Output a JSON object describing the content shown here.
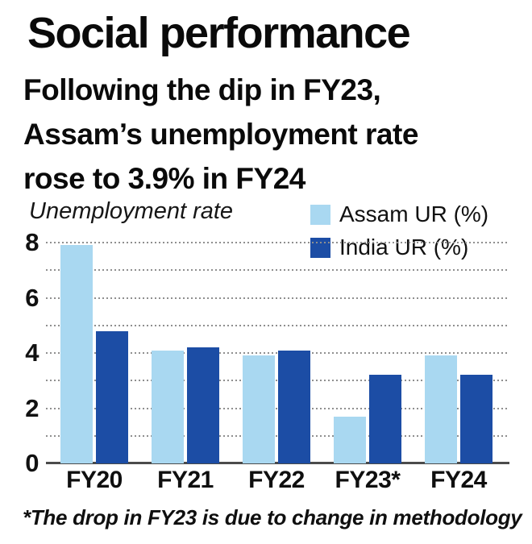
{
  "header": {
    "title": "Social performance",
    "subtitle_lines": [
      "Following the dip in FY23,",
      "Assam’s unemployment rate",
      "rose to 3.9% in FY24"
    ]
  },
  "chart_data": {
    "type": "bar",
    "title": "Social performance",
    "subtitle": "Following the dip in FY23, Assam’s unemployment rate rose to 3.9% in FY24",
    "axis_label": "Unemployment rate",
    "categories": [
      "FY20",
      "FY21",
      "FY22",
      "FY23*",
      "FY24"
    ],
    "series": [
      {
        "name": "Assam UR (%)",
        "color": "#a9d8f1",
        "values": [
          7.9,
          4.1,
          3.9,
          1.7,
          3.9
        ]
      },
      {
        "name": "India UR (%)",
        "color": "#1c4da5",
        "values": [
          4.8,
          4.2,
          4.1,
          3.2,
          3.2
        ]
      }
    ],
    "ylim": [
      0,
      8
    ],
    "yticks": [
      0,
      2,
      4,
      6,
      8
    ],
    "gridlines": "dotted horizontal line at every 1 unit",
    "legend_position": "top-right"
  },
  "footnote": "*The drop in FY23 is due to change in methodology",
  "colors": {
    "background": "#ffffff",
    "assam_bar": "#a9d8f1",
    "india_bar": "#1c4da5",
    "text": "#0d0d0d",
    "gridline": "#8f8f8f",
    "axis_line": "#4b4b4b"
  }
}
